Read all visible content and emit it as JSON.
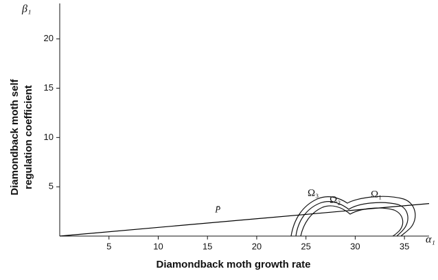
{
  "chart_data": {
    "type": "line",
    "x_label": "Diamondback moth growth rate",
    "y_label": [
      "Diamondback moth self",
      "regulation coefficient"
    ],
    "x_symbol": "α₁",
    "y_symbol": "β₁",
    "series": [
      {
        "name": "P̄",
        "color": "#000000",
        "x": [
          0,
          37.5
        ],
        "values": [
          0,
          3.3
        ]
      }
    ],
    "region_labels": [
      "Ω₃",
      "Ω₂",
      "Ω₁"
    ],
    "xlim": [
      0,
      37.5
    ],
    "ylim": [
      0,
      23.6
    ],
    "xticks": [
      5,
      10,
      15,
      20,
      25,
      30,
      35
    ],
    "yticks": [
      5,
      10,
      15,
      20
    ]
  }
}
